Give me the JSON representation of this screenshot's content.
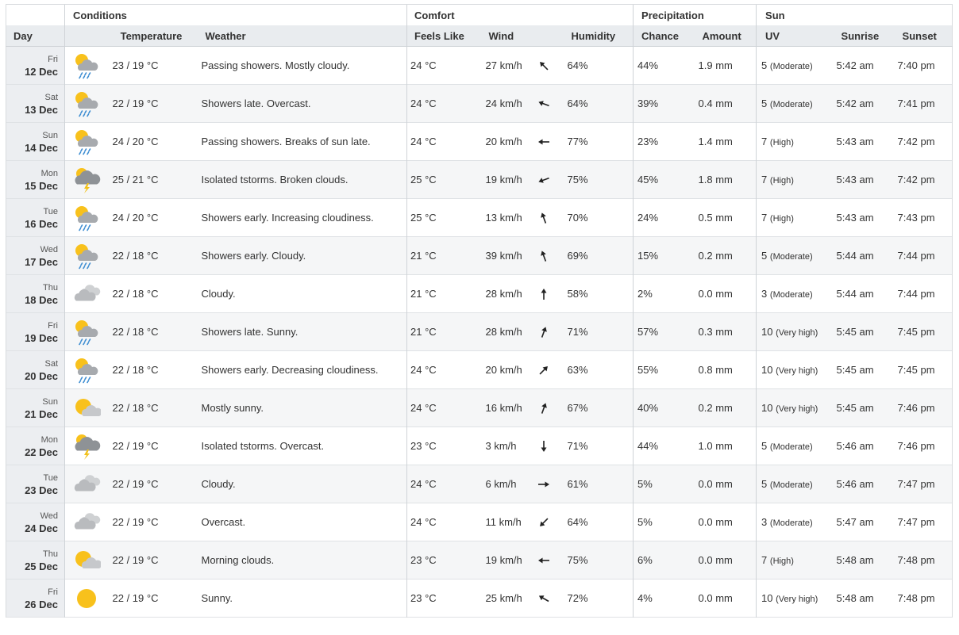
{
  "table": {
    "groups": [
      "Conditions",
      "Comfort",
      "Precipitation",
      "Sun"
    ],
    "columns": [
      "Day",
      "Temperature",
      "Weather",
      "Feels Like",
      "Wind",
      "Humidity",
      "Chance",
      "Amount",
      "UV",
      "Sunrise",
      "Sunset"
    ],
    "rows": [
      {
        "weekday": "Fri",
        "date": "12 Dec",
        "icon": "sun-showers",
        "temperature": "23 / 19 °C",
        "weather": "Passing showers. Mostly cloudy.",
        "feels_like": "24 °C",
        "wind": "27 km/h",
        "wind_arrow": 315,
        "humidity": "64%",
        "chance": "44%",
        "amount": "1.9 mm",
        "uv": "5",
        "uv_label": "(Moderate)",
        "sunrise": "5:42 am",
        "sunset": "7:40 pm"
      },
      {
        "weekday": "Sat",
        "date": "13 Dec",
        "icon": "sun-showers",
        "temperature": "22 / 19 °C",
        "weather": "Showers late. Overcast.",
        "feels_like": "24 °C",
        "wind": "24 km/h",
        "wind_arrow": 290,
        "humidity": "64%",
        "chance": "39%",
        "amount": "0.4 mm",
        "uv": "5",
        "uv_label": "(Moderate)",
        "sunrise": "5:42 am",
        "sunset": "7:41 pm"
      },
      {
        "weekday": "Sun",
        "date": "14 Dec",
        "icon": "sun-showers",
        "temperature": "24 / 20 °C",
        "weather": "Passing showers. Breaks of sun late.",
        "feels_like": "24 °C",
        "wind": "20 km/h",
        "wind_arrow": 270,
        "humidity": "77%",
        "chance": "23%",
        "amount": "1.4 mm",
        "uv": "7",
        "uv_label": "(High)",
        "sunrise": "5:43 am",
        "sunset": "7:42 pm"
      },
      {
        "weekday": "Mon",
        "date": "15 Dec",
        "icon": "storm",
        "temperature": "25 / 21 °C",
        "weather": "Isolated tstorms. Broken clouds.",
        "feels_like": "25 °C",
        "wind": "19 km/h",
        "wind_arrow": 250,
        "humidity": "75%",
        "chance": "45%",
        "amount": "1.8 mm",
        "uv": "7",
        "uv_label": "(High)",
        "sunrise": "5:43 am",
        "sunset": "7:42 pm"
      },
      {
        "weekday": "Tue",
        "date": "16 Dec",
        "icon": "sun-showers",
        "temperature": "24 / 20 °C",
        "weather": "Showers early. Increasing cloudiness.",
        "feels_like": "25 °C",
        "wind": "13 km/h",
        "wind_arrow": 340,
        "humidity": "70%",
        "chance": "24%",
        "amount": "0.5 mm",
        "uv": "7",
        "uv_label": "(High)",
        "sunrise": "5:43 am",
        "sunset": "7:43 pm"
      },
      {
        "weekday": "Wed",
        "date": "17 Dec",
        "icon": "sun-showers",
        "temperature": "22 / 18 °C",
        "weather": "Showers early. Cloudy.",
        "feels_like": "21 °C",
        "wind": "39 km/h",
        "wind_arrow": 340,
        "humidity": "69%",
        "chance": "15%",
        "amount": "0.2 mm",
        "uv": "5",
        "uv_label": "(Moderate)",
        "sunrise": "5:44 am",
        "sunset": "7:44 pm"
      },
      {
        "weekday": "Thu",
        "date": "18 Dec",
        "icon": "cloudy",
        "temperature": "22 / 18 °C",
        "weather": "Cloudy.",
        "feels_like": "21 °C",
        "wind": "28 km/h",
        "wind_arrow": 0,
        "humidity": "58%",
        "chance": "2%",
        "amount": "0.0 mm",
        "uv": "3",
        "uv_label": "(Moderate)",
        "sunrise": "5:44 am",
        "sunset": "7:44 pm"
      },
      {
        "weekday": "Fri",
        "date": "19 Dec",
        "icon": "sun-showers",
        "temperature": "22 / 18 °C",
        "weather": "Showers late. Sunny.",
        "feels_like": "21 °C",
        "wind": "28 km/h",
        "wind_arrow": 20,
        "humidity": "71%",
        "chance": "57%",
        "amount": "0.3 mm",
        "uv": "10",
        "uv_label": "(Very high)",
        "sunrise": "5:45 am",
        "sunset": "7:45 pm"
      },
      {
        "weekday": "Sat",
        "date": "20 Dec",
        "icon": "sun-showers",
        "temperature": "22 / 18 °C",
        "weather": "Showers early. Decreasing cloudiness.",
        "feels_like": "24 °C",
        "wind": "20 km/h",
        "wind_arrow": 45,
        "humidity": "63%",
        "chance": "55%",
        "amount": "0.8 mm",
        "uv": "10",
        "uv_label": "(Very high)",
        "sunrise": "5:45 am",
        "sunset": "7:45 pm"
      },
      {
        "weekday": "Sun",
        "date": "21 Dec",
        "icon": "sun-cloud",
        "temperature": "22 / 18 °C",
        "weather": "Mostly sunny.",
        "feels_like": "24 °C",
        "wind": "16 km/h",
        "wind_arrow": 20,
        "humidity": "67%",
        "chance": "40%",
        "amount": "0.2 mm",
        "uv": "10",
        "uv_label": "(Very high)",
        "sunrise": "5:45 am",
        "sunset": "7:46 pm"
      },
      {
        "weekday": "Mon",
        "date": "22 Dec",
        "icon": "storm",
        "temperature": "22 / 19 °C",
        "weather": "Isolated tstorms. Overcast.",
        "feels_like": "23 °C",
        "wind": "3 km/h",
        "wind_arrow": 180,
        "humidity": "71%",
        "chance": "44%",
        "amount": "1.0 mm",
        "uv": "5",
        "uv_label": "(Moderate)",
        "sunrise": "5:46 am",
        "sunset": "7:46 pm"
      },
      {
        "weekday": "Tue",
        "date": "23 Dec",
        "icon": "cloudy",
        "temperature": "22 / 19 °C",
        "weather": "Cloudy.",
        "feels_like": "24 °C",
        "wind": "6 km/h",
        "wind_arrow": 90,
        "humidity": "61%",
        "chance": "5%",
        "amount": "0.0 mm",
        "uv": "5",
        "uv_label": "(Moderate)",
        "sunrise": "5:46 am",
        "sunset": "7:47 pm"
      },
      {
        "weekday": "Wed",
        "date": "24 Dec",
        "icon": "cloudy",
        "temperature": "22 / 19 °C",
        "weather": "Overcast.",
        "feels_like": "24 °C",
        "wind": "11 km/h",
        "wind_arrow": 225,
        "humidity": "64%",
        "chance": "5%",
        "amount": "0.0 mm",
        "uv": "3",
        "uv_label": "(Moderate)",
        "sunrise": "5:47 am",
        "sunset": "7:47 pm"
      },
      {
        "weekday": "Thu",
        "date": "25 Dec",
        "icon": "sun-cloud",
        "temperature": "22 / 19 °C",
        "weather": "Morning clouds.",
        "feels_like": "23 °C",
        "wind": "19 km/h",
        "wind_arrow": 270,
        "humidity": "75%",
        "chance": "6%",
        "amount": "0.0 mm",
        "uv": "7",
        "uv_label": "(High)",
        "sunrise": "5:48 am",
        "sunset": "7:48 pm"
      },
      {
        "weekday": "Fri",
        "date": "26 Dec",
        "icon": "sun",
        "temperature": "22 / 19 °C",
        "weather": "Sunny.",
        "feels_like": "23 °C",
        "wind": "25 km/h",
        "wind_arrow": 300,
        "humidity": "72%",
        "chance": "4%",
        "amount": "0.0 mm",
        "uv": "10",
        "uv_label": "(Very high)",
        "sunrise": "5:48 am",
        "sunset": "7:48 pm"
      }
    ]
  }
}
